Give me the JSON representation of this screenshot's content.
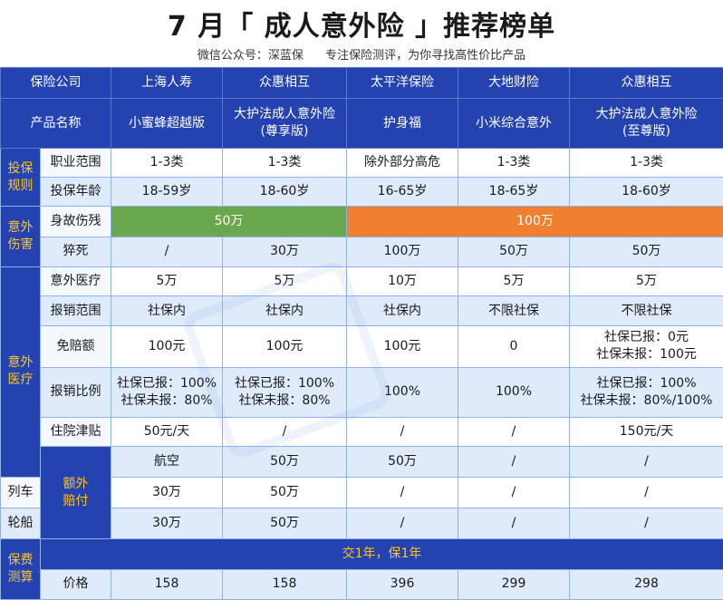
{
  "header": {
    "title": "7 月「 成人意外险 」推荐榜单",
    "account": "微信公众号：深蓝保",
    "slogan": "专注保险测评，为你寻找高性价比产品"
  },
  "table": {
    "company_label": "保险公司",
    "product_label": "产品名称",
    "companies": [
      "上海人寿",
      "众惠相互",
      "太平洋保险",
      "大地财险",
      "众惠相互"
    ],
    "products": [
      [
        "小蜜蜂超越版"
      ],
      [
        "大护法成人意外险",
        "(尊享版)"
      ],
      [
        "护身福"
      ],
      [
        "小米综合意外"
      ],
      [
        "大护法成人意外险",
        "(至尊版)"
      ]
    ],
    "categories": {
      "insure": [
        "投保",
        "规则"
      ],
      "accident": [
        "意外",
        "伤害"
      ],
      "medical": [
        "意外",
        "医疗"
      ],
      "extra": [
        "额外",
        "赔付"
      ],
      "premium": [
        "保费",
        "测算"
      ]
    },
    "rows": {
      "occupation": {
        "label": "职业范围",
        "values": [
          "1-3类",
          "1-3类",
          "除外部分高危",
          "1-3类",
          "1-3类"
        ]
      },
      "age": {
        "label": "投保年龄",
        "values": [
          "18-59岁",
          "18-60岁",
          "16-65岁",
          "18-65岁",
          "18-60岁"
        ]
      },
      "death": {
        "label": "身故伤残",
        "green_value": "50万",
        "orange_value": "100万"
      },
      "sudden": {
        "label": "猝死",
        "values": [
          "/",
          "30万",
          "100万",
          "50万",
          "50万"
        ]
      },
      "med": {
        "label": "意外医疗",
        "values": [
          "5万",
          "5万",
          "10万",
          "5万",
          "5万"
        ]
      },
      "scope": {
        "label": "报销范围",
        "values": [
          "社保内",
          "社保内",
          "社保内",
          "不限社保",
          "不限社保"
        ]
      },
      "deductible": {
        "label": "免赔额",
        "values": [
          [
            "100元"
          ],
          [
            "100元"
          ],
          [
            "100元"
          ],
          [
            "0"
          ],
          [
            "社保已报：0元",
            "社保未报：100元"
          ]
        ]
      },
      "ratio": {
        "label": "报销比例",
        "values": [
          [
            "社保已报：100%",
            "社保未报：80%"
          ],
          [
            "社保已报：100%",
            "社保未报：80%"
          ],
          [
            "100%"
          ],
          [
            "100%"
          ],
          [
            "社保已报：100%",
            "社保未报：80%/100%"
          ]
        ]
      },
      "hospital": {
        "label": "住院津贴",
        "values": [
          "50元/天",
          "/",
          "/",
          "/",
          "150元/天"
        ]
      },
      "air": {
        "label": "航空",
        "values": [
          "50万",
          "50万",
          "/",
          "/",
          "/"
        ]
      },
      "train": {
        "label": "列车",
        "values": [
          "30万",
          "50万",
          "/",
          "/",
          "/"
        ]
      },
      "ship": {
        "label": "轮船",
        "values": [
          "30万",
          "50万",
          "/",
          "/",
          "/"
        ]
      },
      "term": {
        "text": "交1年，保1年"
      },
      "price": {
        "label": "价格",
        "values": [
          "158",
          "158",
          "396",
          "299",
          "298"
        ]
      }
    }
  },
  "colors": {
    "header_blue": "#2443b0",
    "category_text": "#ffc61a",
    "green": "#6aa84f",
    "orange": "#f0802f",
    "alt_row": "#dfeafb"
  }
}
